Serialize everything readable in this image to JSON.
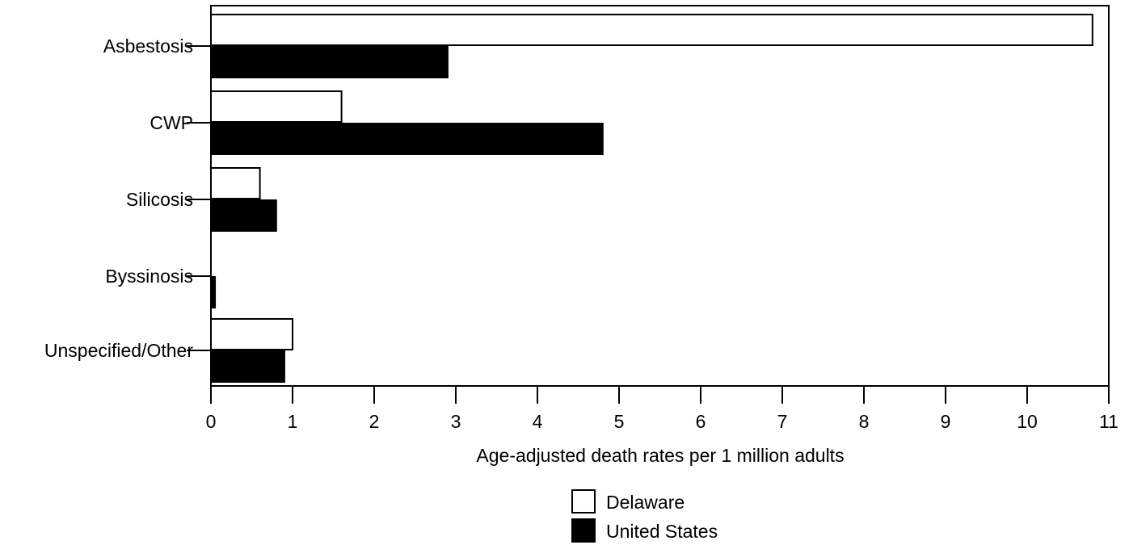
{
  "chart_data": {
    "type": "bar",
    "orientation": "horizontal",
    "categories": [
      "Asbestosis",
      "CWP",
      "Silicosis",
      "Byssinosis",
      "Unspecified/Other"
    ],
    "series": [
      {
        "name": "Delaware",
        "values": [
          10.8,
          1.6,
          0.6,
          0.0,
          1.0
        ],
        "color": "#ffffff"
      },
      {
        "name": "United States",
        "values": [
          2.9,
          4.8,
          0.8,
          0.05,
          0.9
        ],
        "color": "#000000"
      }
    ],
    "xlabel": "Age-adjusted death rates per 1 million adults",
    "ylabel": "",
    "xlim": [
      0,
      11
    ],
    "xticks": [
      "0",
      "1",
      "2",
      "3",
      "4",
      "5",
      "6",
      "7",
      "8",
      "9",
      "10",
      "11"
    ],
    "grid": false,
    "legend_position": "bottom"
  }
}
